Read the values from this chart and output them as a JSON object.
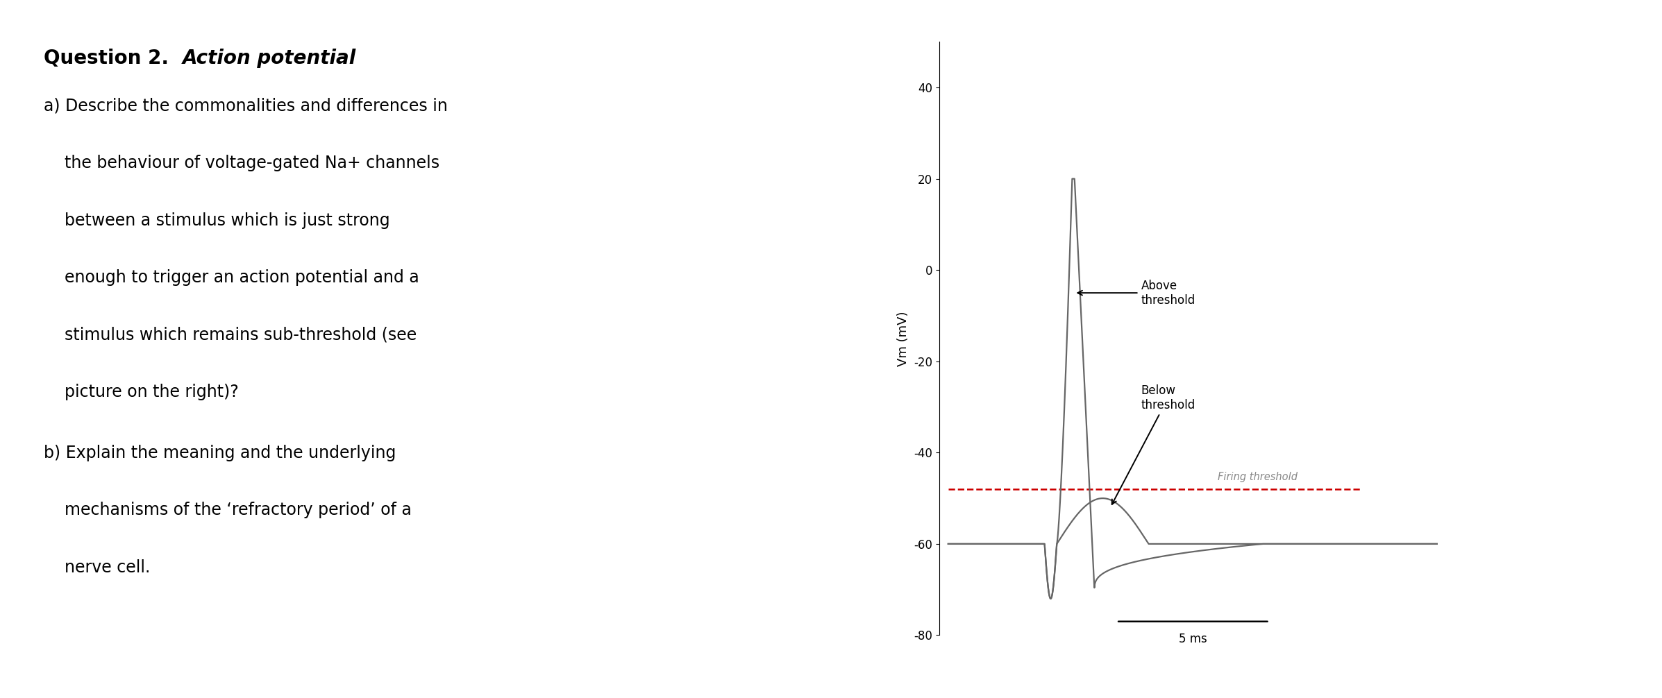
{
  "text_lines_a": [
    "a) Describe the commonalities and differences in",
    "    the behaviour of voltage-gated Na+ channels",
    "    between a stimulus which is just strong",
    "    enough to trigger an action potential and a",
    "    stimulus which remains sub-threshold (see",
    "    picture on the right)?"
  ],
  "text_lines_b": [
    "b) Explain the meaning and the underlying",
    "    mechanisms of the ‘refractory period’ of a",
    "    nerve cell."
  ],
  "ylabel": "Vm (mV)",
  "xlabel_scalebar": "5 ms",
  "ylim": [
    -80,
    50
  ],
  "yticks": [
    -80,
    -60,
    -40,
    -20,
    0,
    20,
    40
  ],
  "firing_threshold": -48,
  "resting_potential": -60,
  "annotation_above": "Above\nthreshold",
  "annotation_below": "Below\nthreshold",
  "annotation_firing": "Firing threshold",
  "bg_color": "#ffffff",
  "line_color": "#666666",
  "threshold_color": "#cc0000"
}
